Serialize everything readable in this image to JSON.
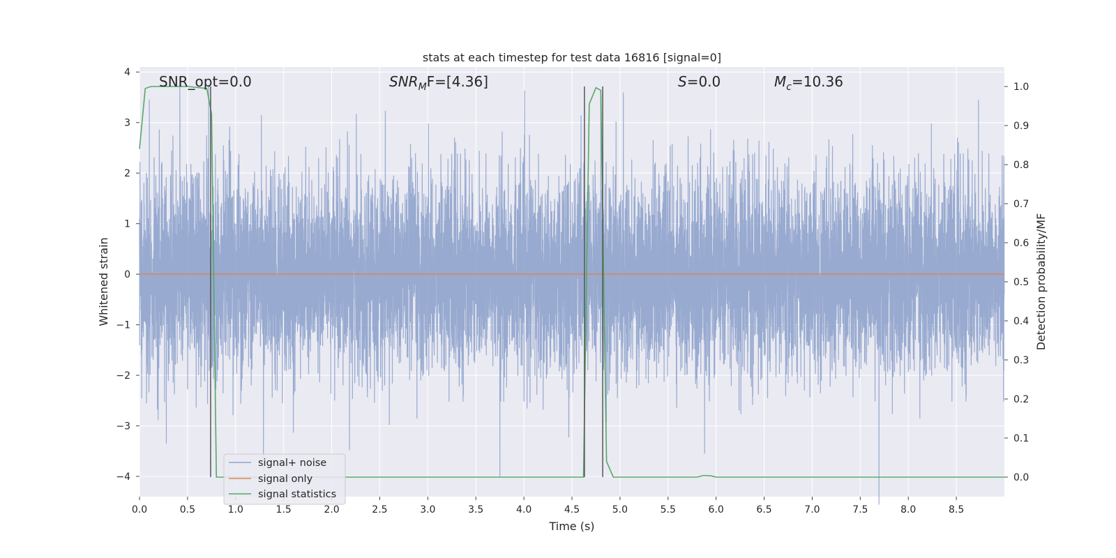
{
  "chart_data": {
    "type": "line",
    "title": "stats at each timestep for test data 16816 [signal=0]",
    "xlabel": "Time (s)",
    "ylabel": "Whitened strain",
    "ylabel_right": "Detection probability/MF",
    "xlim": [
      0.0,
      9.0
    ],
    "ylim": [
      -4.4,
      4.1
    ],
    "ylim_right": [
      -0.05,
      1.05
    ],
    "x_ticks": [
      "0.0",
      "0.5",
      "1.0",
      "1.5",
      "2.0",
      "2.5",
      "3.0",
      "3.5",
      "4.0",
      "4.5",
      "5.0",
      "5.5",
      "6.0",
      "6.5",
      "7.0",
      "7.5",
      "8.0",
      "8.5"
    ],
    "x_tick_values": [
      0.0,
      0.5,
      1.0,
      1.5,
      2.0,
      2.5,
      3.0,
      3.5,
      4.0,
      4.5,
      5.0,
      5.5,
      6.0,
      6.5,
      7.0,
      7.5,
      8.0,
      8.5
    ],
    "y_ticks": [
      "4",
      "3",
      "2",
      "1",
      "0",
      "−1",
      "−2",
      "−3",
      "−4"
    ],
    "y_tick_values": [
      4,
      3,
      2,
      1,
      0,
      -1,
      -2,
      -3,
      -4
    ],
    "y_right_ticks": [
      "1.0",
      "0.9",
      "0.8",
      "0.7",
      "0.6",
      "0.5",
      "0.4",
      "0.3",
      "0.2",
      "0.1",
      "0.0"
    ],
    "y_right_tick_values": [
      1.0,
      0.9,
      0.8,
      0.7,
      0.6,
      0.5,
      0.4,
      0.3,
      0.2,
      0.1,
      0.0
    ],
    "grid": true,
    "legend_position": "lower-left",
    "annotations": {
      "snr_opt": "SNR_opt=0.0",
      "snr_mf_main": "SNR",
      "snr_mf_sub": "M",
      "snr_mf_rest": "F=[4.36]",
      "s_main": "S",
      "s_rest": "=0.0",
      "mc_main": "M",
      "mc_sub": "c",
      "mc_rest": "=10.36"
    },
    "series": [
      {
        "name": "signal+ noise",
        "color": "#8fa3cc",
        "axis": "left",
        "kind": "noise",
        "sample_rate_hz": 1000,
        "std": 0.95,
        "peaks": [
          [
            0.42,
            3.9
          ],
          [
            0.72,
            3.75
          ],
          [
            1.29,
            -3.9
          ],
          [
            3.75,
            -4.0
          ],
          [
            4.8,
            3.5
          ],
          [
            5.88,
            -3.55
          ],
          [
            8.73,
            3.45
          ]
        ]
      },
      {
        "name": "signal only",
        "color": "#dd8452",
        "axis": "left",
        "x": [
          0.0,
          9.0
        ],
        "y": [
          0.0,
          0.0
        ]
      },
      {
        "name": "signal statistics",
        "color": "#55a868",
        "axis": "right",
        "x": [
          0.0,
          0.06,
          0.12,
          0.2,
          0.3,
          0.5,
          0.7,
          0.75,
          0.8,
          0.85,
          1.0,
          2.0,
          3.0,
          4.0,
          4.5,
          4.62,
          4.68,
          4.75,
          4.8,
          4.86,
          4.93,
          5.0,
          5.5,
          5.8,
          5.87,
          5.95,
          6.0,
          6.5,
          7.0,
          8.0,
          8.5,
          9.0
        ],
        "y": [
          0.84,
          0.995,
          1.0,
          1.0,
          1.0,
          1.0,
          0.995,
          0.93,
          0.0,
          0.0,
          0.0,
          0.0,
          0.0,
          0.0,
          0.0,
          0.0,
          0.955,
          0.997,
          0.99,
          0.04,
          0.0,
          0.0,
          0.0,
          0.0,
          0.004,
          0.003,
          0.0,
          0.0,
          0.0,
          0.0,
          0.0,
          0.0
        ]
      }
    ],
    "vertical_markers": {
      "color": "#555555",
      "x": [
        0.74,
        4.63,
        4.82
      ],
      "y_top_right": 1.0,
      "y_bottom_right": 0.0
    }
  }
}
